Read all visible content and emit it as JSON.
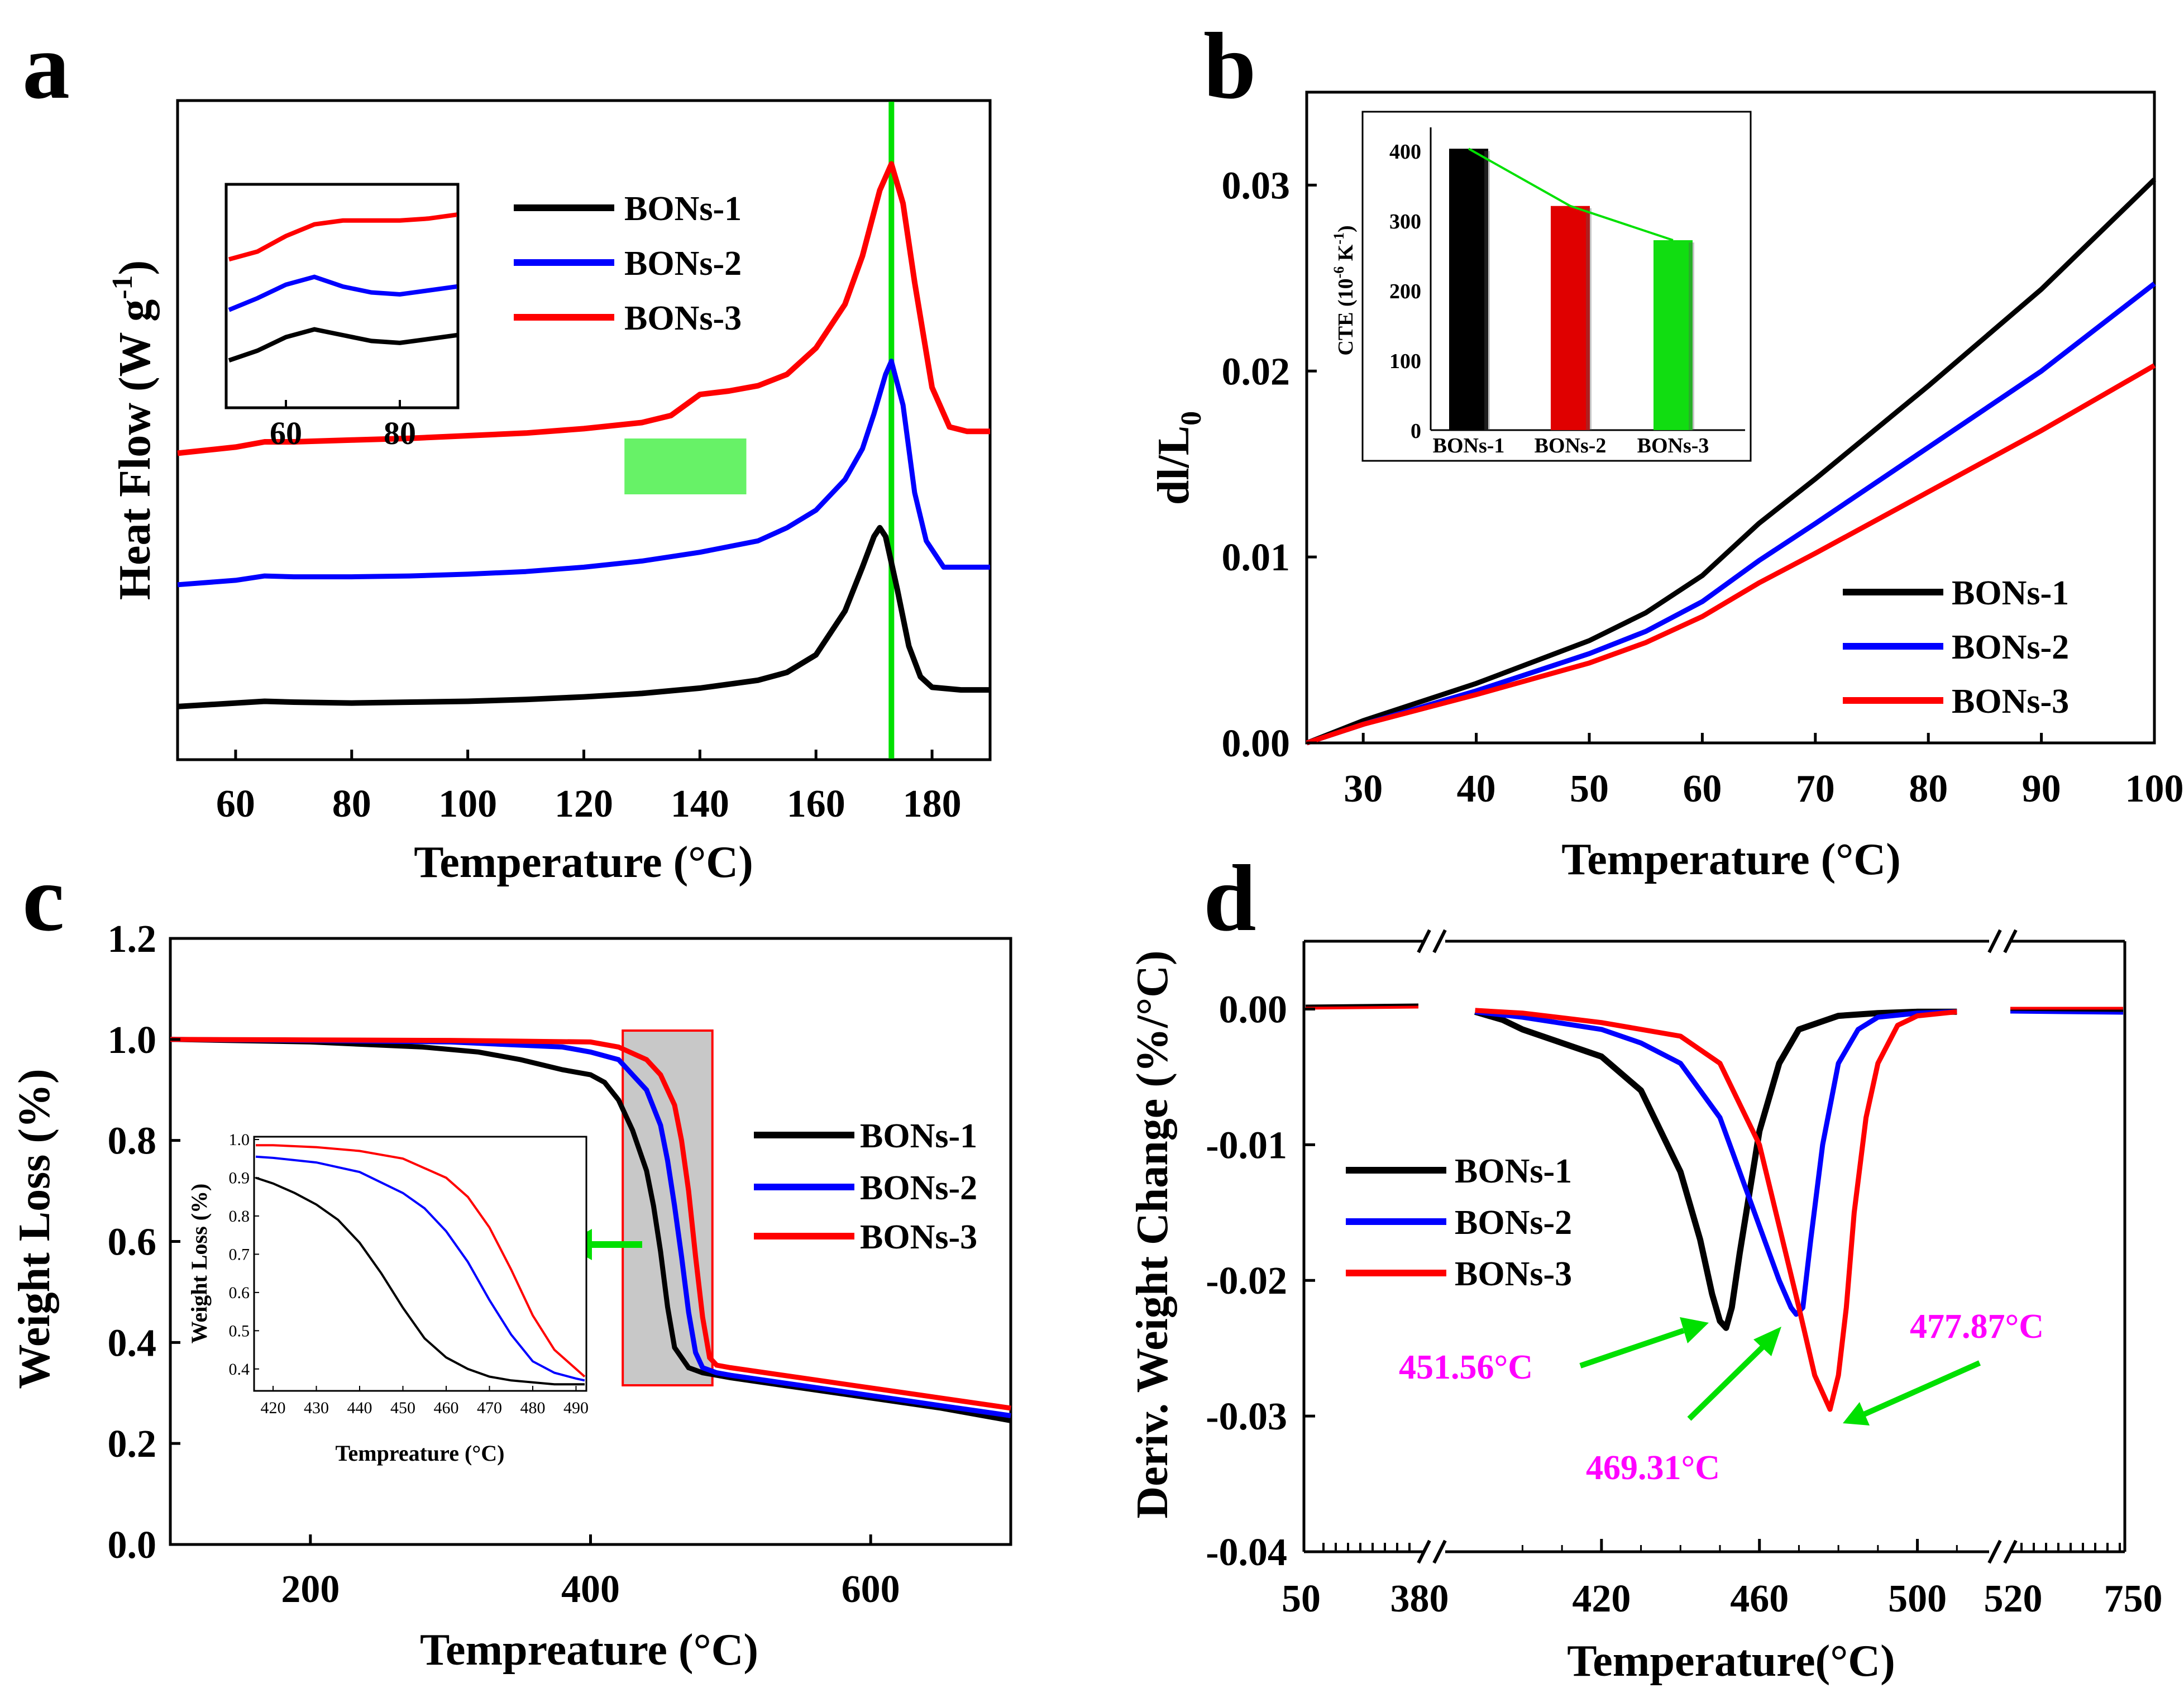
{
  "colors": {
    "s1": "#000000",
    "s2": "#0000ff",
    "s3": "#ff0000",
    "accent": "#00e000",
    "annot": "#ff00ff"
  },
  "chart_data": [
    {
      "panel": "a",
      "type": "line",
      "xlabel": "Temperature (°C)",
      "ylabel": "Heat Flow (W g",
      "ylabel_sup": "-1",
      "ylabel_end": ")",
      "xlim": [
        50,
        190
      ],
      "xticks": [
        "60",
        "80",
        "100",
        "120",
        "140",
        "160",
        "180"
      ],
      "legend": [
        "BONs-1",
        "BONs-2",
        "BONs-3"
      ],
      "vline_x": 173,
      "highlight_x": [
        127,
        148
      ],
      "series": [
        {
          "name": "BONs-1",
          "x": [
            50,
            60,
            65,
            70,
            80,
            90,
            100,
            110,
            120,
            130,
            140,
            150,
            155,
            160,
            165,
            168,
            170,
            171,
            172,
            174,
            176,
            178,
            180,
            185,
            190
          ],
          "y": [
            0.16,
            0.2,
            0.22,
            0.21,
            0.2,
            0.21,
            0.22,
            0.24,
            0.27,
            0.31,
            0.37,
            0.46,
            0.55,
            0.75,
            1.25,
            1.75,
            2.1,
            2.2,
            2.1,
            1.5,
            0.85,
            0.5,
            0.38,
            0.35,
            0.35
          ]
        },
        {
          "name": "BONs-2",
          "x": [
            50,
            60,
            65,
            70,
            80,
            90,
            100,
            110,
            120,
            130,
            140,
            150,
            155,
            160,
            165,
            168,
            170,
            172,
            173,
            175,
            177,
            179,
            182,
            185,
            190
          ],
          "y": [
            1.55,
            1.6,
            1.65,
            1.64,
            1.64,
            1.65,
            1.67,
            1.7,
            1.75,
            1.82,
            1.92,
            2.05,
            2.2,
            2.4,
            2.75,
            3.1,
            3.5,
            3.95,
            4.1,
            3.6,
            2.6,
            2.05,
            1.75,
            1.75,
            1.75
          ]
        },
        {
          "name": "BONs-3",
          "x": [
            50,
            60,
            65,
            70,
            80,
            90,
            100,
            110,
            120,
            130,
            135,
            140,
            145,
            150,
            155,
            160,
            165,
            168,
            171,
            173,
            175,
            177,
            180,
            183,
            186,
            190
          ],
          "y": [
            3.05,
            3.12,
            3.18,
            3.18,
            3.2,
            3.22,
            3.25,
            3.28,
            3.33,
            3.4,
            3.48,
            3.72,
            3.76,
            3.82,
            3.95,
            4.25,
            4.75,
            5.3,
            6.05,
            6.35,
            5.9,
            5.0,
            3.8,
            3.35,
            3.3,
            3.3
          ]
        }
      ],
      "inset": {
        "xlim": [
          50,
          90
        ],
        "xticks": [
          "60",
          "80"
        ],
        "series": [
          {
            "name": "BONs-1",
            "x": [
              50,
              55,
              60,
              65,
              70,
              75,
              80,
              85,
              90
            ],
            "y": [
              0.5,
              0.75,
              1.1,
              1.3,
              1.15,
              1.0,
              0.95,
              1.05,
              1.15
            ]
          },
          {
            "name": "BONs-2",
            "x": [
              50,
              55,
              60,
              65,
              70,
              75,
              80,
              85,
              90
            ],
            "y": [
              1.8,
              2.1,
              2.45,
              2.65,
              2.4,
              2.25,
              2.2,
              2.3,
              2.4
            ]
          },
          {
            "name": "BONs-3",
            "x": [
              50,
              55,
              60,
              65,
              70,
              75,
              80,
              85,
              90
            ],
            "y": [
              3.1,
              3.3,
              3.7,
              4.0,
              4.1,
              4.1,
              4.1,
              4.15,
              4.25
            ]
          }
        ]
      }
    },
    {
      "panel": "b",
      "type": "line",
      "xlabel": "Temperature (°C)",
      "ylabel": "dl/L",
      "ylabel_sub": "0",
      "xlim": [
        25,
        100
      ],
      "ylim": [
        0,
        0.035
      ],
      "xticks": [
        "30",
        "40",
        "50",
        "60",
        "70",
        "80",
        "90",
        "100"
      ],
      "yticks": [
        "0.00",
        "0.01",
        "0.02",
        "0.03"
      ],
      "legend": [
        "BONs-1",
        "BONs-2",
        "BONs-3"
      ],
      "series": [
        {
          "name": "BONs-1",
          "x": [
            25,
            30,
            40,
            50,
            55,
            60,
            65,
            70,
            80,
            90,
            100
          ],
          "y": [
            0,
            0.0012,
            0.0032,
            0.0055,
            0.007,
            0.009,
            0.0118,
            0.0142,
            0.0192,
            0.0244,
            0.0303
          ]
        },
        {
          "name": "BONs-2",
          "x": [
            25,
            30,
            40,
            50,
            55,
            60,
            65,
            70,
            80,
            90,
            100
          ],
          "y": [
            0,
            0.001,
            0.0028,
            0.0048,
            0.006,
            0.0076,
            0.0098,
            0.0118,
            0.0159,
            0.02,
            0.0247
          ]
        },
        {
          "name": "BONs-3",
          "x": [
            25,
            30,
            40,
            50,
            55,
            60,
            65,
            70,
            80,
            90,
            100
          ],
          "y": [
            0,
            0.001,
            0.0026,
            0.0043,
            0.0054,
            0.0068,
            0.0086,
            0.0102,
            0.0135,
            0.0168,
            0.0203
          ]
        }
      ],
      "inset": {
        "type": "bar",
        "ylabel": "CTE (10",
        "ylabel_sup": "-6",
        "ylabel_unit": " K",
        "ylabel_sup2": "-1",
        "ylabel_end": ")",
        "ylim": [
          0,
          440
        ],
        "yticks": [
          "0",
          "100",
          "200",
          "300",
          "400"
        ],
        "categories": [
          "BONs-1",
          "BONs-2",
          "BONs-3"
        ],
        "values": [
          403,
          321,
          272
        ]
      }
    },
    {
      "panel": "c",
      "type": "line",
      "xlabel": "Tempreature (°C)",
      "ylabel": "Weight Loss (%)",
      "xlim": [
        100,
        700
      ],
      "ylim": [
        0,
        1.2
      ],
      "xticks": [
        "200",
        "400",
        "600"
      ],
      "yticks": [
        "0.0",
        "0.2",
        "0.4",
        "0.6",
        "0.8",
        "1.0",
        "1.2"
      ],
      "legend": [
        "BONs-1",
        "BONs-2",
        "BONs-3"
      ],
      "highlight_x": [
        423,
        487
      ],
      "series": [
        {
          "name": "BONs-1",
          "x": [
            100,
            200,
            280,
            320,
            350,
            380,
            400,
            410,
            420,
            430,
            440,
            445,
            450,
            455,
            460,
            470,
            480,
            500,
            550,
            600,
            650,
            700
          ],
          "y": [
            1.0,
            0.995,
            0.985,
            0.975,
            0.96,
            0.94,
            0.93,
            0.915,
            0.88,
            0.82,
            0.74,
            0.67,
            0.58,
            0.47,
            0.39,
            0.35,
            0.34,
            0.33,
            0.31,
            0.29,
            0.27,
            0.245
          ]
        },
        {
          "name": "BONs-2",
          "x": [
            100,
            200,
            300,
            380,
            400,
            420,
            440,
            450,
            455,
            460,
            465,
            470,
            475,
            480,
            490,
            500,
            550,
            600,
            650,
            700
          ],
          "y": [
            1.0,
            0.998,
            0.995,
            0.985,
            0.975,
            0.96,
            0.9,
            0.83,
            0.76,
            0.67,
            0.57,
            0.46,
            0.38,
            0.35,
            0.34,
            0.335,
            0.315,
            0.295,
            0.275,
            0.255
          ]
        },
        {
          "name": "BONs-3",
          "x": [
            100,
            200,
            300,
            400,
            420,
            440,
            450,
            460,
            465,
            470,
            475,
            480,
            485,
            490,
            500,
            550,
            600,
            650,
            700
          ],
          "y": [
            1.0,
            0.999,
            0.998,
            0.995,
            0.985,
            0.96,
            0.93,
            0.87,
            0.8,
            0.7,
            0.57,
            0.45,
            0.37,
            0.355,
            0.35,
            0.33,
            0.31,
            0.29,
            0.27
          ]
        }
      ],
      "inset": {
        "xlabel": "Tempreature (°C)",
        "ylabel": "Weight Loss (%)",
        "xlim": [
          416,
          492
        ],
        "ylim": [
          0.35,
          1.0
        ],
        "xticks": [
          "420",
          "430",
          "440",
          "450",
          "460",
          "470",
          "480",
          "490"
        ],
        "yticks": [
          "0.4",
          "0.5",
          "0.6",
          "0.7",
          "0.8",
          "0.9",
          "1.0"
        ],
        "series": [
          {
            "name": "BONs-1",
            "x": [
              416,
              420,
              425,
              430,
              435,
              440,
              445,
              450,
              455,
              460,
              465,
              470,
              475,
              480,
              485,
              490,
              492
            ],
            "y": [
              0.9,
              0.885,
              0.86,
              0.83,
              0.79,
              0.73,
              0.65,
              0.56,
              0.48,
              0.43,
              0.4,
              0.38,
              0.37,
              0.365,
              0.36,
              0.36,
              0.36
            ]
          },
          {
            "name": "BONs-2",
            "x": [
              416,
              420,
              430,
              440,
              450,
              455,
              460,
              465,
              470,
              475,
              480,
              485,
              490,
              492
            ],
            "y": [
              0.955,
              0.952,
              0.94,
              0.915,
              0.86,
              0.82,
              0.76,
              0.68,
              0.58,
              0.49,
              0.42,
              0.39,
              0.375,
              0.37
            ]
          },
          {
            "name": "BONs-3",
            "x": [
              416,
              420,
              430,
              440,
              450,
              460,
              465,
              470,
              475,
              480,
              485,
              490,
              492
            ],
            "y": [
              0.985,
              0.985,
              0.98,
              0.97,
              0.95,
              0.9,
              0.85,
              0.77,
              0.66,
              0.54,
              0.45,
              0.4,
              0.38
            ]
          }
        ]
      }
    },
    {
      "panel": "d",
      "type": "line",
      "xlabel": "Temperature(°C)",
      "ylabel": "Deriv. Weight Change (%/°C)",
      "ylim": [
        -0.04,
        0.005
      ],
      "xticks": [
        "50",
        "380",
        "420",
        "460",
        "500",
        "520",
        "750"
      ],
      "yticks": [
        "0.00",
        "-0.01",
        "-0.02",
        "-0.03",
        "-0.04"
      ],
      "legend": [
        "BONs-1",
        "BONs-2",
        "BONs-3"
      ],
      "annotations": [
        "451.56°C",
        "469.31°C",
        "477.87°C"
      ],
      "series": [
        {
          "name": "BONs-1",
          "x": [
            388,
            395,
            400,
            410,
            420,
            430,
            440,
            445,
            448,
            450,
            451.56,
            453,
            455,
            460,
            465,
            470,
            480,
            490,
            500,
            510
          ],
          "y": [
            -0.0002,
            -0.0008,
            -0.0015,
            -0.0025,
            -0.0035,
            -0.006,
            -0.012,
            -0.017,
            -0.021,
            -0.023,
            -0.0235,
            -0.022,
            -0.018,
            -0.009,
            -0.004,
            -0.0015,
            -0.0005,
            -0.0003,
            -0.0002,
            -0.0002
          ]
        },
        {
          "name": "BONs-2",
          "x": [
            388,
            400,
            420,
            430,
            440,
            450,
            455,
            460,
            465,
            468,
            469.31,
            471,
            473,
            476,
            480,
            485,
            490,
            500,
            510
          ],
          "y": [
            -0.0002,
            -0.0006,
            -0.0015,
            -0.0025,
            -0.004,
            -0.008,
            -0.012,
            -0.016,
            -0.02,
            -0.022,
            -0.0225,
            -0.022,
            -0.017,
            -0.01,
            -0.004,
            -0.0015,
            -0.0006,
            -0.0003,
            -0.0002
          ]
        },
        {
          "name": "BONs-3",
          "x": [
            388,
            400,
            420,
            440,
            450,
            460,
            465,
            470,
            474,
            477.87,
            480,
            482,
            484,
            487,
            490,
            495,
            500,
            510
          ],
          "y": [
            -0.0001,
            -0.0003,
            -0.001,
            -0.002,
            -0.004,
            -0.01,
            -0.016,
            -0.022,
            -0.027,
            -0.0295,
            -0.027,
            -0.022,
            -0.015,
            -0.008,
            -0.004,
            -0.0012,
            -0.0005,
            -0.0002
          ]
        }
      ]
    }
  ]
}
